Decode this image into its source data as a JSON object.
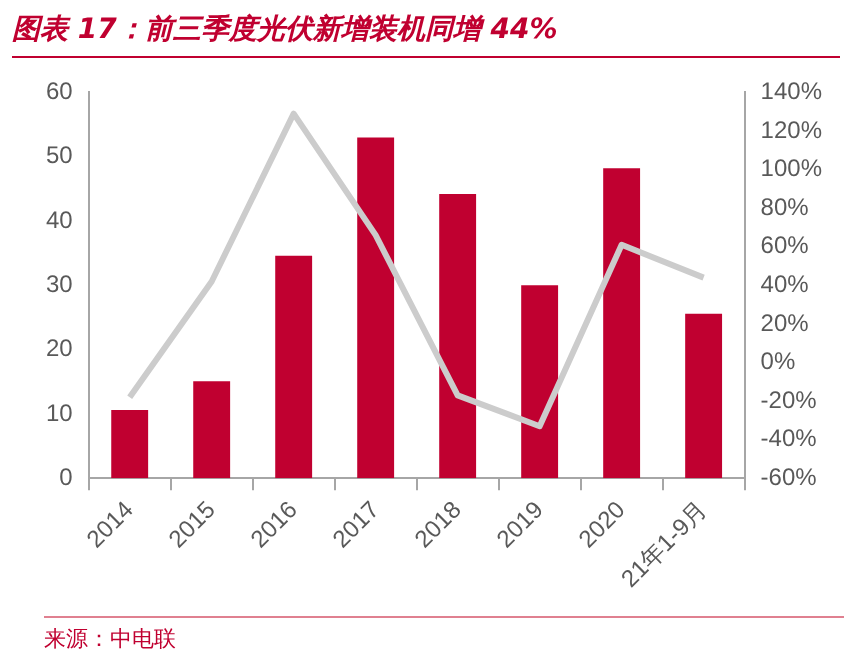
{
  "chart_data": {
    "type": "bar",
    "title": "图表 17：前三季度光伏新增装机同增 44%",
    "categories": [
      "2014",
      "2015",
      "2016",
      "2017",
      "2018",
      "2019",
      "2020",
      "21年1-9月"
    ],
    "series": [
      {
        "color": "#c00030",
        "values": [
          10.6,
          15.1,
          34.6,
          53,
          44.2,
          30,
          48.2,
          25.6
        ]
      },
      {
        "type": "line",
        "axis": "y2",
        "color": "#cccccc",
        "marker": "none",
        "values": [
          -18,
          42,
          129,
          66,
          -17,
          -33,
          61,
          44
        ]
      }
    ],
    "ylim": [
      0,
      60
    ],
    "yticks": [
      0,
      10,
      20,
      30,
      40,
      50,
      60
    ],
    "y2lim": [
      -60,
      140
    ],
    "y2ticks": [
      {
        "value": -60,
        "label": "-60%"
      },
      {
        "value": -40,
        "label": "-40%"
      },
      {
        "value": -20,
        "label": "-20%"
      },
      {
        "value": 0,
        "label": "0%"
      },
      {
        "value": 20,
        "label": "20%"
      },
      {
        "value": 40,
        "label": "40%"
      },
      {
        "value": 60,
        "label": "60%"
      },
      {
        "value": 80,
        "label": "80%"
      },
      {
        "value": 100,
        "label": "100%"
      },
      {
        "value": 120,
        "label": "120%"
      },
      {
        "value": 140,
        "label": "140%"
      }
    ],
    "grid": false,
    "legend": false,
    "annotations": [
      "来源：中电联"
    ]
  }
}
